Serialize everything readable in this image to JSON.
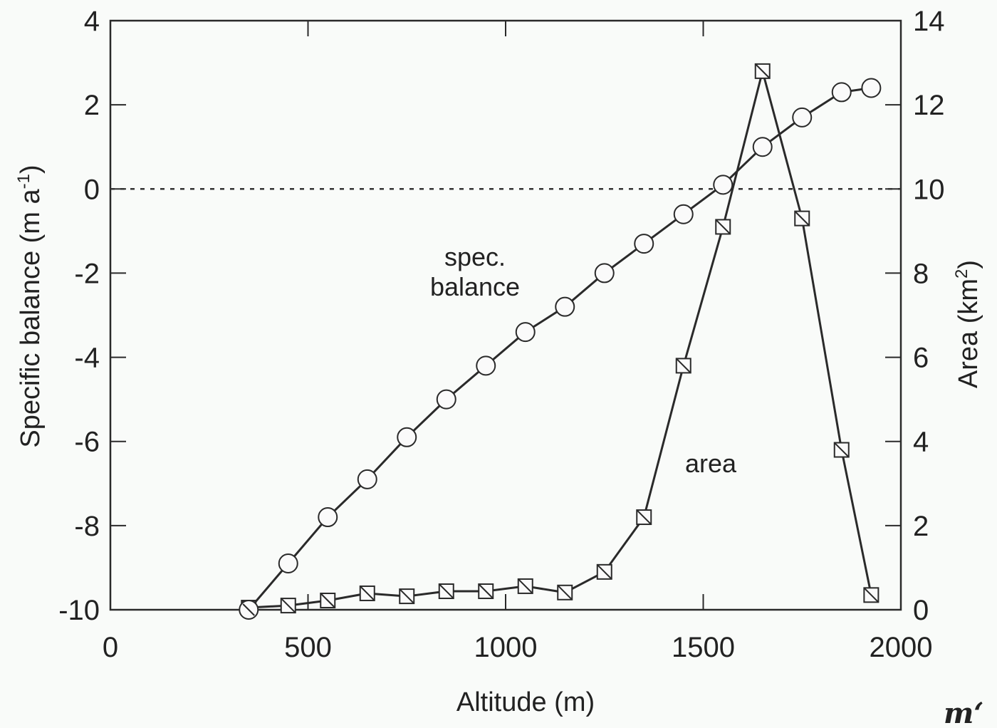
{
  "chart_data": {
    "type": "line",
    "title": "",
    "xlabel": "Altitude (m)",
    "ylabel": "Specific balance (m a-1)",
    "ylabel_right": "Area (km2)",
    "xlim": [
      0,
      2000
    ],
    "ylim": [
      -10,
      4
    ],
    "ylim_right": [
      0,
      14
    ],
    "x_ticks": [
      0,
      500,
      1000,
      1500,
      2000
    ],
    "y_ticks": [
      4,
      2,
      0,
      -2,
      -4,
      -6,
      -8,
      -10
    ],
    "y_ticks_right": [
      14,
      12,
      10,
      8,
      6,
      4,
      2,
      0
    ],
    "grid": false,
    "zero_line": {
      "y": 0,
      "style": "dotted"
    },
    "x": [
      350,
      450,
      550,
      650,
      750,
      850,
      950,
      1050,
      1150,
      1250,
      1350,
      1450,
      1550,
      1650,
      1750,
      1850,
      1925
    ],
    "series": [
      {
        "name": "spec. balance",
        "axis": "left",
        "marker": "open-circle",
        "values": [
          -10.0,
          -8.9,
          -7.8,
          -6.9,
          -5.9,
          -5.0,
          -4.2,
          -3.4,
          -2.8,
          -2.0,
          -1.3,
          -0.6,
          0.1,
          1.0,
          1.7,
          2.3,
          2.4
        ]
      },
      {
        "name": "area",
        "axis": "right",
        "marker": "hatched-square",
        "values": [
          0.05,
          0.1,
          0.22,
          0.39,
          0.32,
          0.44,
          0.44,
          0.56,
          0.41,
          0.9,
          2.2,
          5.8,
          9.1,
          12.8,
          9.3,
          3.8,
          0.35
        ]
      }
    ],
    "annotations": [
      {
        "text_line1": "spec.",
        "text_line2": "balance"
      },
      {
        "text": "area"
      }
    ]
  },
  "labels": {
    "xlabel": "Altitude (m)",
    "ylabel_main": "Specific balance (m a",
    "ylabel_sup": "-1",
    "ylabel_close": ")",
    "ylabel_right_main": "Area (km",
    "ylabel_right_sup": "2",
    "ylabel_right_close": ")",
    "annot_spec_1": "spec.",
    "annot_spec_2": "balance",
    "annot_area": "area",
    "stray_mark": "m‘"
  }
}
